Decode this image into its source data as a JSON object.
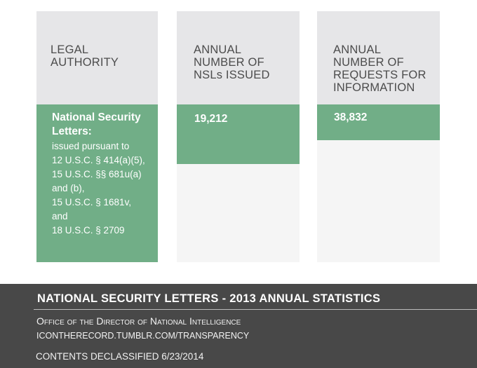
{
  "columns": [
    {
      "header": [
        "LEGAL",
        "AUTHORITY"
      ],
      "title_lines": [
        "National Security",
        "Letters:"
      ],
      "body_lines": [
        "issued pursuant to",
        "12 U.S.C. § 414(a)(5),",
        "15 U.S.C. §§ 681u(a)",
        "and (b),",
        "15 U.S.C. § 1681v,",
        "and",
        "18 U.S.C. § 2709"
      ]
    },
    {
      "header": [
        "ANNUAL",
        "NUMBER OF",
        "NSLs ISSUED"
      ],
      "value": "19,212"
    },
    {
      "header": [
        "ANNUAL",
        "NUMBER OF",
        "REQUESTS FOR",
        "INFORMATION"
      ],
      "value": "38,832"
    }
  ],
  "footer": {
    "title": "NATIONAL SECURITY LETTERS - 2013 ANNUAL STATISTICS",
    "org": "Office of the Director of National Intelligence",
    "url": "ICONTHERECORD.TUMBLR.COM/TRANSPARENCY",
    "declassified": "CONTENTS DECLASSIFIED 6/23/2014"
  },
  "colors": {
    "header_bg": "#e6e6e8",
    "panel_bg": "#f5f5f5",
    "accent_green": "#71ae87",
    "footer_bg": "#484848"
  }
}
